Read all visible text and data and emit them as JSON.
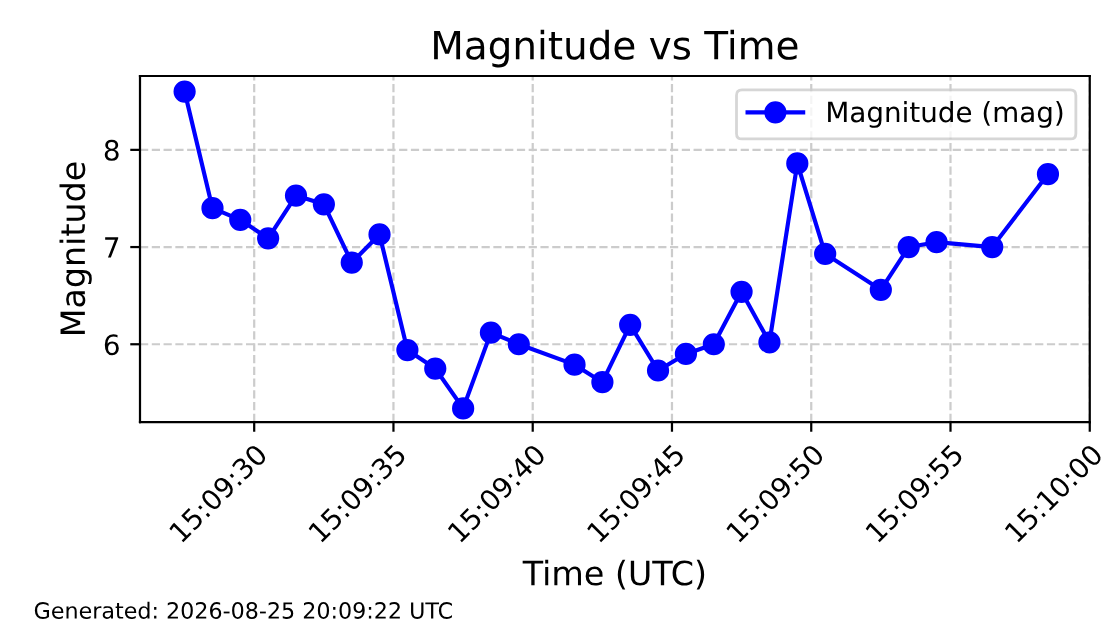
{
  "chart_data": {
    "type": "line",
    "title": "Magnitude vs Time",
    "xlabel": "Time (UTC)",
    "ylabel": "Magnitude",
    "x": [
      15.157639,
      15.157917,
      15.158194,
      15.158472,
      15.15875,
      15.159028,
      15.159306,
      15.159583,
      15.159861,
      15.160139,
      15.160417,
      15.160694,
      15.160972,
      15.161528,
      15.161806,
      15.162083,
      15.162361,
      15.162639,
      15.162917,
      15.163194,
      15.163472,
      15.16375,
      15.164028,
      15.164583,
      15.164861,
      15.165139,
      15.165694,
      15.16625
    ],
    "series": [
      {
        "name": "Magnitude (mag)",
        "color": "#0000ff",
        "values": [
          8.6,
          7.4,
          7.28,
          7.09,
          7.53,
          7.44,
          6.84,
          7.13,
          5.94,
          5.75,
          5.34,
          6.12,
          6.0,
          5.79,
          5.61,
          6.2,
          5.73,
          5.9,
          6.0,
          6.54,
          6.02,
          7.86,
          6.93,
          6.56,
          7.0,
          7.05,
          7.0,
          7.75
        ]
      }
    ],
    "xlim": [
      15.157194,
      15.166667
    ],
    "xticks": [
      {
        "value": 15.158333,
        "label": "15:09:30"
      },
      {
        "value": 15.159722,
        "label": "15:09:35"
      },
      {
        "value": 15.161111,
        "label": "15:09:40"
      },
      {
        "value": 15.1625,
        "label": "15:09:45"
      },
      {
        "value": 15.163889,
        "label": "15:09:50"
      },
      {
        "value": 15.165278,
        "label": "15:09:55"
      },
      {
        "value": 15.166667,
        "label": "15:10:00"
      }
    ],
    "ylim": [
      5.2,
      8.76
    ],
    "yticks": [
      6,
      7,
      8
    ],
    "grid": true,
    "legend": "top right",
    "marker": "circle",
    "line_style": "solid",
    "annotations": [
      "Generated: 2026-08-25 20:09:22 UTC"
    ]
  }
}
